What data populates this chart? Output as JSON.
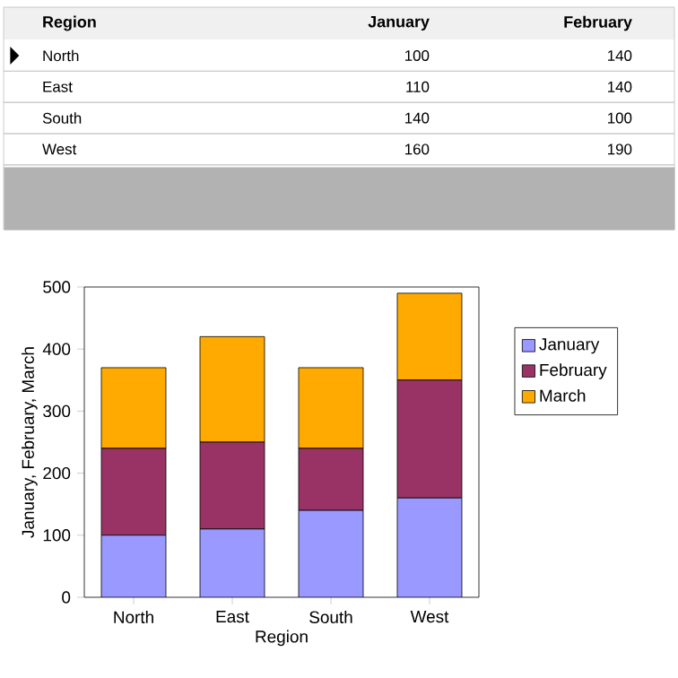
{
  "chart_data": [
    {
      "type": "other",
      "annotations": [
        "Region",
        "January",
        "February",
        "North",
        "100",
        "140",
        "East",
        "110",
        "140",
        "South",
        "140",
        "100",
        "West",
        "160",
        "190"
      ]
    },
    {
      "type": "bar",
      "stacked": true,
      "xlabel": "Region",
      "ylabel": "January, February, March",
      "categories": [
        "North",
        "East",
        "South",
        "West"
      ],
      "series": [
        {
          "name": "January",
          "color": "#9999ff",
          "values": [
            100,
            110,
            140,
            160
          ]
        },
        {
          "name": "February",
          "color": "#993366",
          "values": [
            140,
            140,
            100,
            190
          ]
        },
        {
          "name": "March",
          "color": "#ffaa00",
          "values": [
            130,
            170,
            130,
            140
          ]
        }
      ],
      "ylim": [
        0,
        500
      ],
      "yticks": [
        0,
        100,
        200,
        300,
        400,
        500
      ],
      "grid": false,
      "legend": "right"
    }
  ]
}
